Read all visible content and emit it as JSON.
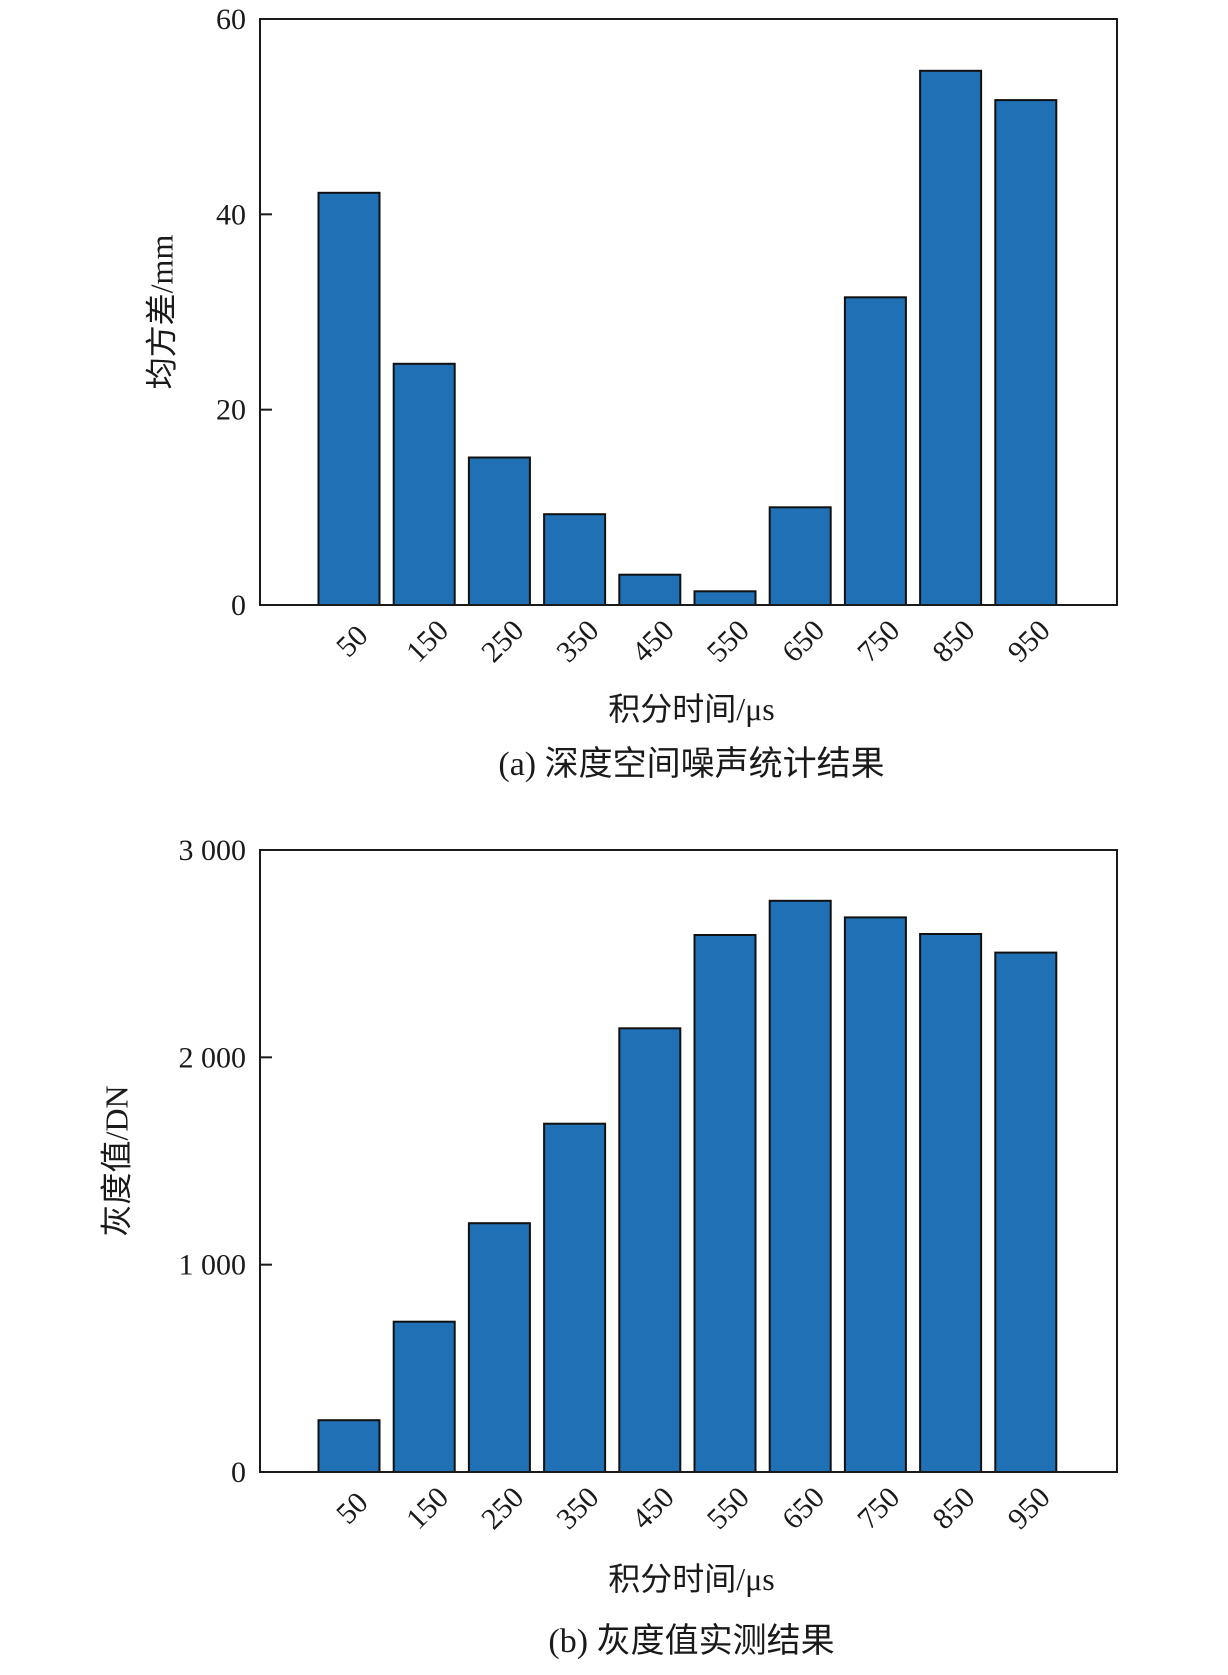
{
  "chart_data": [
    {
      "type": "bar",
      "title": "",
      "caption": "(a) 深度空间噪声统计结果",
      "xlabel": "积分时间/μs",
      "ylabel": "均方差/mm",
      "categories": [
        "50",
        "150",
        "250",
        "350",
        "450",
        "550",
        "650",
        "750",
        "850",
        "950"
      ],
      "values": [
        42.2,
        24.7,
        15.1,
        9.3,
        3.1,
        1.4,
        10.0,
        31.5,
        54.7,
        51.7
      ],
      "ylim": [
        0,
        60
      ],
      "yticks": [
        0,
        20,
        40,
        60
      ],
      "ytick_labels": [
        "0",
        "20",
        "40",
        "60"
      ],
      "grid": false,
      "bar_color": "#1f70b4"
    },
    {
      "type": "bar",
      "title": "",
      "caption": "(b) 灰度值实测结果",
      "xlabel": "积分时间/μs",
      "ylabel": "灰度值/DN",
      "categories": [
        "50",
        "150",
        "250",
        "350",
        "450",
        "550",
        "650",
        "750",
        "850",
        "950"
      ],
      "values": [
        250,
        725,
        1200,
        1680,
        2140,
        2590,
        2755,
        2675,
        2595,
        2505
      ],
      "ylim": [
        0,
        3000
      ],
      "yticks": [
        0,
        1000,
        2000,
        3000
      ],
      "ytick_labels": [
        "0",
        "1 000",
        "2 000",
        "3 000"
      ],
      "grid": false,
      "bar_color": "#1f70b4"
    }
  ]
}
